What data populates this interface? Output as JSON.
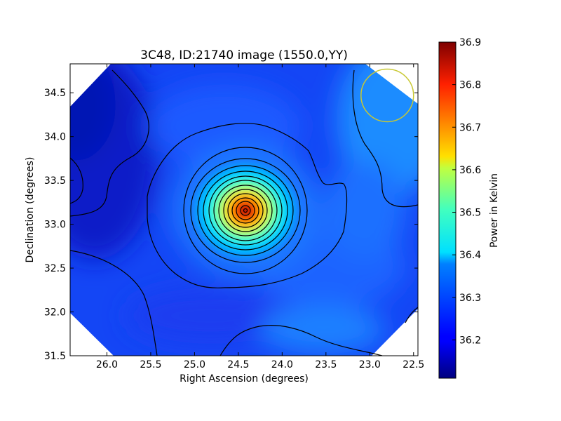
{
  "chart_data": {
    "type": "heatmap",
    "title": "3C48, ID:21740 image (1550.0,YY)",
    "xlabel": "Right Ascension (degrees)",
    "ylabel": "Declination (degrees)",
    "colorbar_label": "Power in Kelvin",
    "x_reversed": true,
    "xlim": [
      26.42,
      22.45
    ],
    "ylim": [
      31.5,
      34.83
    ],
    "x_ticks": [
      26.0,
      25.5,
      25.0,
      24.5,
      24.0,
      23.5,
      23.0,
      22.5
    ],
    "x_tick_labels": [
      "26.0",
      "25.5",
      "25.0",
      "24.5",
      "24.0",
      "23.5",
      "23.0",
      "22.5"
    ],
    "y_ticks": [
      31.5,
      32.0,
      32.5,
      33.0,
      33.5,
      34.0,
      34.5
    ],
    "y_tick_labels": [
      "31.5",
      "32.0",
      "32.5",
      "33.0",
      "33.5",
      "34.0",
      "34.5"
    ],
    "colorbar_range": [
      36.11,
      36.9
    ],
    "colorbar_ticks": [
      36.2,
      36.3,
      36.4,
      36.5,
      36.6,
      36.7,
      36.8,
      36.9
    ],
    "colorbar_tick_labels": [
      "36.2",
      "36.3",
      "36.4",
      "36.5",
      "36.6",
      "36.7",
      "36.8",
      "36.9"
    ],
    "colormap": "jet",
    "source_peak": {
      "ra": 24.42,
      "dec": 33.15,
      "value": 36.9
    },
    "contours": true,
    "beam_circle": {
      "ra": 22.8,
      "dec": 34.47,
      "radius_deg": 0.3,
      "color": "#c8c832"
    },
    "grid": false
  }
}
